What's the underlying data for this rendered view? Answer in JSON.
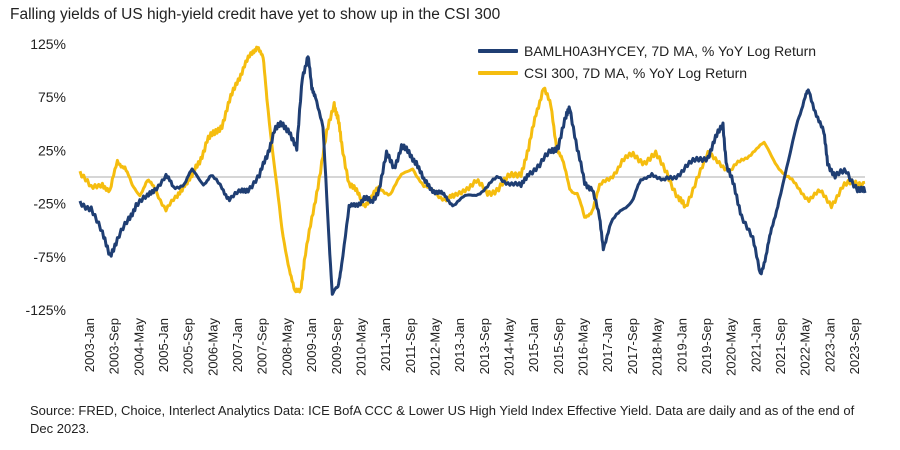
{
  "title": "Falling yields of US high-yield credit have yet to show up in the CSI 300",
  "source": "Source: FRED, Choice, Interlect Analytics    Data: ICE BofA CCC & Lower US High Yield Index Effective Yield. Data are daily and as of the end of Dec 2023.",
  "colors": {
    "series1": "#1f3e73",
    "series2": "#f5bd0f",
    "zero_line": "#c8c8c8"
  },
  "chart_data": {
    "type": "line",
    "title": "Falling yields of US high-yield credit have yet to show up in the CSI 300",
    "xlabel": "",
    "ylabel": "",
    "ylim": [
      -125,
      125
    ],
    "xlim": [
      2003.0,
      2024.0
    ],
    "y_ticks": [
      125,
      75,
      25,
      -25,
      -75,
      -125
    ],
    "y_tick_labels": [
      "125%",
      "75%",
      "25%",
      "-25%",
      "-75%",
      "-125%"
    ],
    "x_tick_labels": [
      "2003-Jan",
      "2003-Sep",
      "2004-May",
      "2005-Jan",
      "2005-Sep",
      "2006-May",
      "2007-Jan",
      "2007-Sep",
      "2008-May",
      "2009-Jan",
      "2009-Sep",
      "2010-May",
      "2011-Jan",
      "2011-Sep",
      "2012-May",
      "2013-Jan",
      "2013-Sep",
      "2014-May",
      "2015-Jan",
      "2015-Sep",
      "2016-May",
      "2017-Jan",
      "2017-Sep",
      "2018-May",
      "2019-Jan",
      "2019-Sep",
      "2020-May",
      "2021-Jan",
      "2021-Sep",
      "2022-May",
      "2023-Jan",
      "2023-Sep"
    ],
    "legend_position": "top-right",
    "series": [
      {
        "name": "BAMLH0A3HYCEY, 7D MA, % YoY Log Return",
        "x": [
          2003.0,
          2003.3,
          2003.6,
          2003.8,
          2004.0,
          2004.3,
          2004.5,
          2004.8,
          2005.0,
          2005.3,
          2005.5,
          2005.8,
          2006.0,
          2006.3,
          2006.5,
          2006.8,
          2007.0,
          2007.3,
          2007.5,
          2007.8,
          2008.0,
          2008.2,
          2008.4,
          2008.6,
          2008.8,
          2008.95,
          2009.1,
          2009.2,
          2009.3,
          2009.5,
          2009.65,
          2009.75,
          2009.9,
          2010.0,
          2010.2,
          2010.4,
          2010.6,
          2010.8,
          2011.0,
          2011.2,
          2011.4,
          2011.6,
          2011.8,
          2012.0,
          2012.2,
          2012.4,
          2012.6,
          2012.8,
          2013.0,
          2013.3,
          2013.6,
          2013.9,
          2014.2,
          2014.5,
          2014.8,
          2015.0,
          2015.3,
          2015.6,
          2015.8,
          2016.0,
          2016.1,
          2016.3,
          2016.5,
          2016.7,
          2016.9,
          2017.0,
          2017.2,
          2017.5,
          2017.8,
          2018.0,
          2018.3,
          2018.6,
          2018.9,
          2019.2,
          2019.5,
          2019.8,
          2020.0,
          2020.2,
          2020.3,
          2020.5,
          2020.7,
          2021.0,
          2021.2,
          2021.35,
          2021.5,
          2021.7,
          2022.0,
          2022.2,
          2022.4,
          2022.5,
          2022.7,
          2022.9,
          2023.0,
          2023.2,
          2023.5,
          2023.8,
          2024.0
        ],
        "values": [
          -25,
          -28,
          -55,
          -72,
          -60,
          -40,
          -25,
          -20,
          -10,
          0,
          -10,
          -5,
          5,
          -5,
          0,
          -10,
          -20,
          -15,
          -10,
          0,
          20,
          45,
          48,
          45,
          25,
          95,
          115,
          82,
          78,
          45,
          -50,
          -110,
          -105,
          -80,
          -30,
          -25,
          -20,
          -25,
          -10,
          20,
          10,
          28,
          22,
          15,
          -5,
          -10,
          -15,
          -20,
          -25,
          -20,
          -15,
          -10,
          0,
          -5,
          -10,
          5,
          10,
          25,
          30,
          55,
          68,
          25,
          -5,
          -10,
          -40,
          -65,
          -45,
          -30,
          -20,
          -5,
          5,
          -5,
          0,
          10,
          15,
          20,
          35,
          50,
          10,
          -10,
          -35,
          -60,
          -90,
          -75,
          -50,
          -20,
          20,
          55,
          75,
          80,
          60,
          40,
          15,
          0,
          5,
          -10,
          -15
        ]
      },
      {
        "name": "CSI 300, 7D MA, % YoY Log Return",
        "x": [
          2003.0,
          2003.3,
          2003.6,
          2003.8,
          2004.0,
          2004.2,
          2004.4,
          2004.6,
          2004.8,
          2005.0,
          2005.3,
          2005.6,
          2005.8,
          2006.0,
          2006.2,
          2006.4,
          2006.6,
          2006.8,
          2007.0,
          2007.2,
          2007.4,
          2007.6,
          2007.75,
          2007.9,
          2008.0,
          2008.2,
          2008.4,
          2008.6,
          2008.75,
          2008.9,
          2009.0,
          2009.2,
          2009.4,
          2009.6,
          2009.8,
          2009.9,
          2010.0,
          2010.2,
          2010.4,
          2010.6,
          2010.8,
          2011.0,
          2011.3,
          2011.6,
          2011.9,
          2012.2,
          2012.5,
          2012.8,
          2013.0,
          2013.3,
          2013.6,
          2013.9,
          2014.2,
          2014.5,
          2014.8,
          2015.0,
          2015.2,
          2015.4,
          2015.6,
          2015.75,
          2015.9,
          2016.1,
          2016.3,
          2016.5,
          2016.7,
          2016.9,
          2017.2,
          2017.5,
          2017.8,
          2018.1,
          2018.4,
          2018.7,
          2019.0,
          2019.2,
          2019.5,
          2019.8,
          2020.1,
          2020.4,
          2020.7,
          2021.0,
          2021.3,
          2021.6,
          2021.9,
          2022.2,
          2022.5,
          2022.8,
          2023.1,
          2023.4,
          2023.7,
          2024.0
        ],
        "values": [
          5,
          -12,
          -5,
          -15,
          15,
          10,
          -10,
          -15,
          -5,
          -10,
          -30,
          -20,
          -5,
          0,
          15,
          35,
          40,
          50,
          70,
          90,
          105,
          115,
          125,
          110,
          75,
          10,
          -50,
          -85,
          -110,
          -105,
          -80,
          -40,
          0,
          40,
          70,
          55,
          30,
          -5,
          -15,
          -25,
          -20,
          -10,
          -15,
          0,
          10,
          -10,
          -15,
          -20,
          -20,
          -10,
          -5,
          -15,
          -10,
          0,
          5,
          25,
          60,
          85,
          65,
          30,
          15,
          -10,
          -15,
          -40,
          -30,
          -10,
          0,
          15,
          20,
          15,
          20,
          5,
          -20,
          -30,
          0,
          20,
          15,
          5,
          15,
          25,
          30,
          15,
          0,
          -10,
          -20,
          -15,
          -25,
          -10,
          -5,
          -5
        ]
      }
    ]
  }
}
